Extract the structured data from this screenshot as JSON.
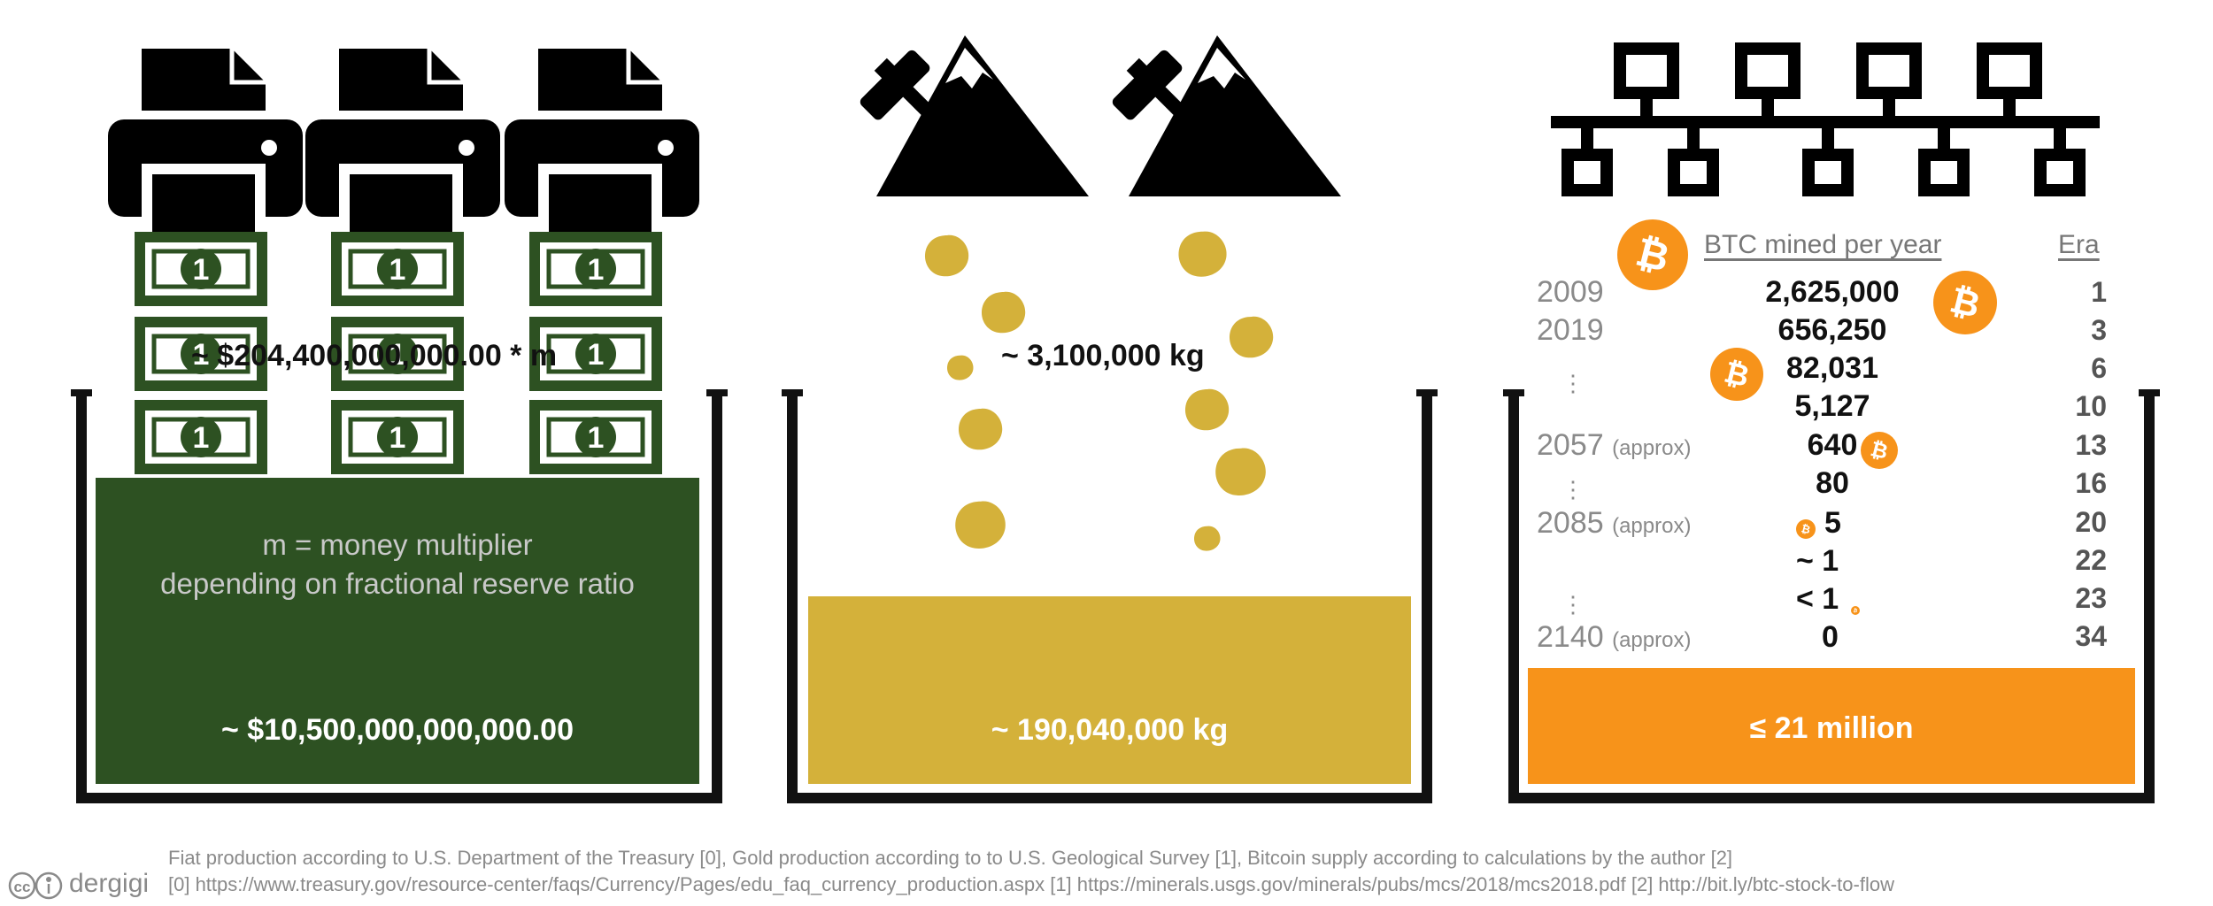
{
  "fiat": {
    "flow_label": "~ $204,400,000,000.00 * m",
    "note_line1": "m = money multiplier",
    "note_line2": "depending on fractional reserve ratio",
    "total": "~ $10,500,000,000,000.00",
    "bill_digit": "1",
    "colors": {
      "fill": "#2d5122",
      "bill": "#2d5122"
    }
  },
  "gold": {
    "flow_label": "~ 3,100,000 kg",
    "total": "~ 190,040,000 kg",
    "colors": {
      "fill": "#d4b13a"
    }
  },
  "btc": {
    "header": "BTC mined per year",
    "era_header": "Era",
    "total": "≤ 21 million",
    "rows": [
      {
        "year": "2009",
        "approx": "",
        "amount": "2,625,000",
        "era": "1"
      },
      {
        "year": "2019",
        "approx": "",
        "amount": "656,250",
        "era": "3"
      },
      {
        "year": "⋮",
        "approx": "",
        "amount": "82,031",
        "era": "6"
      },
      {
        "year": "",
        "approx": "",
        "amount": "5,127",
        "era": "10"
      },
      {
        "year": "2057",
        "approx": "(approx)",
        "amount": "640",
        "era": "13"
      },
      {
        "year": "⋮",
        "approx": "",
        "amount": "80",
        "era": "16"
      },
      {
        "year": "2085",
        "approx": "(approx)",
        "amount": "5",
        "era": "20"
      },
      {
        "year": "",
        "approx": "",
        "amount": "~ 1",
        "era": "22"
      },
      {
        "year": "⋮",
        "approx": "",
        "amount": "< 1",
        "era": "23"
      },
      {
        "year": "2140",
        "approx": "(approx)",
        "amount": "0",
        "era": "34"
      }
    ],
    "colors": {
      "fill": "#f7931a"
    }
  },
  "footer": {
    "line1": "Fiat production according to U.S. Department of the Treasury [0], Gold production according to to U.S. Geological Survey [1], Bitcoin supply according to calculations by the author [2]",
    "line2": "[0] https://www.treasury.gov/resource-center/faqs/Currency/Pages/edu_faq_currency_production.aspx [1] https://minerals.usgs.gov/minerals/pubs/mcs/2018/mcs2018.pdf [2] http://bit.ly/btc-stock-to-flow",
    "brand": "dergigi",
    "license_icons": "cc-by"
  }
}
